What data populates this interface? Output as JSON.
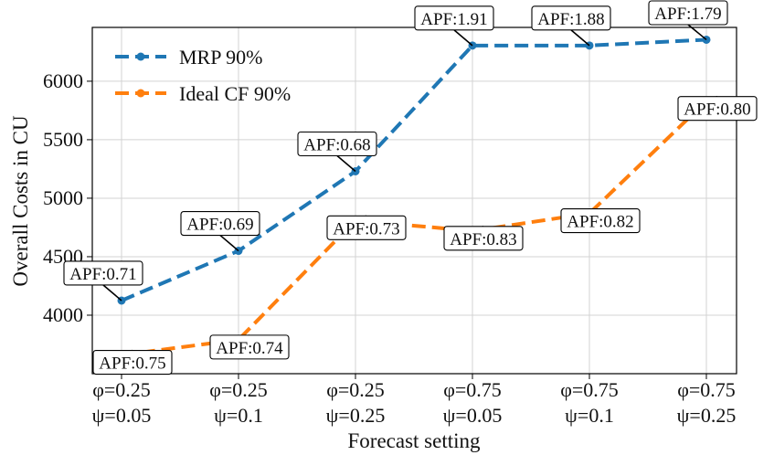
{
  "chart_data": {
    "type": "line",
    "xlabel": "Forecast setting",
    "ylabel": "Overall Costs in CU",
    "ylim": [
      3500,
      6460
    ],
    "yticks": [
      4000,
      4500,
      5000,
      5500,
      6000
    ],
    "grid": true,
    "legend_position": "top-left",
    "categories": [
      {
        "line1": "φ=0.25",
        "line2": "ψ=0.05"
      },
      {
        "line1": "φ=0.25",
        "line2": "ψ=0.1"
      },
      {
        "line1": "φ=0.25",
        "line2": "ψ=0.25"
      },
      {
        "line1": "φ=0.75",
        "line2": "ψ=0.05"
      },
      {
        "line1": "φ=0.75",
        "line2": "ψ=0.1"
      },
      {
        "line1": "φ=0.75",
        "line2": "ψ=0.25"
      }
    ],
    "series": [
      {
        "name": "MRP 90%",
        "color": "#1f77b4",
        "values": [
          4125,
          4550,
          5230,
          6305,
          6305,
          6355
        ],
        "annotations": [
          "APF:0.71",
          "APF:0.69",
          "APF:0.68",
          "APF:1.91",
          "APF:1.88",
          "APF:1.79"
        ],
        "annotation_side": "above"
      },
      {
        "name": "Ideal CF 90%",
        "color": "#ff7f0e",
        "values": [
          3660,
          3790,
          4810,
          4720,
          4870,
          5830
        ],
        "annotations": [
          "APF:0.75",
          "APF:0.74",
          "APF:0.73",
          "APF:0.83",
          "APF:0.82",
          "APF:0.80"
        ],
        "annotation_side": "below"
      }
    ]
  }
}
